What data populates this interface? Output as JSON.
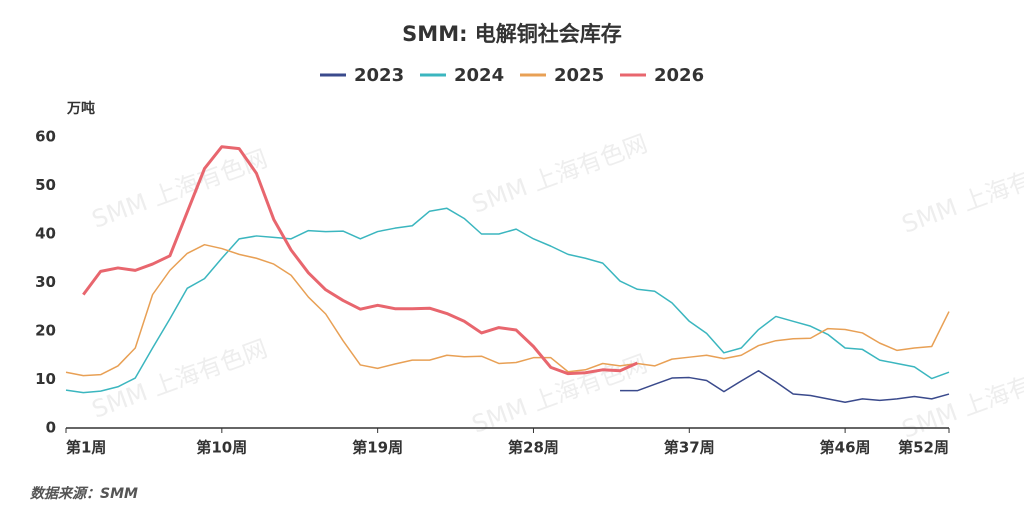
{
  "chart_data": {
    "type": "line",
    "title": "SMM: 电解铜社会库存",
    "y_label": "万吨",
    "source": "数据来源：SMM",
    "watermark": "SMM 上海有色网",
    "categories": [
      "第1周",
      null,
      null,
      null,
      null,
      null,
      null,
      null,
      null,
      "第10周",
      null,
      null,
      null,
      null,
      null,
      null,
      null,
      null,
      "第19周",
      null,
      null,
      null,
      null,
      null,
      null,
      null,
      null,
      "第28周",
      null,
      null,
      null,
      null,
      null,
      null,
      null,
      null,
      "第37周",
      null,
      null,
      null,
      null,
      null,
      null,
      null,
      null,
      "第46周",
      null,
      null,
      null,
      null,
      null,
      "第52周"
    ],
    "ylim": [
      0,
      60
    ],
    "yticks": [
      0,
      10,
      20,
      30,
      40,
      50,
      60
    ],
    "legend": "top",
    "series": [
      {
        "name": "2023",
        "color": "#3a4a8c",
        "width": 1.5,
        "values": [
          null,
          null,
          null,
          null,
          null,
          null,
          null,
          null,
          null,
          null,
          null,
          null,
          null,
          null,
          null,
          null,
          null,
          null,
          null,
          null,
          null,
          null,
          null,
          null,
          null,
          null,
          null,
          null,
          null,
          null,
          null,
          null,
          7.7,
          7.7,
          9,
          10.3,
          10.4,
          9.8,
          7.5,
          9.7,
          11.8,
          9.5,
          7,
          6.7,
          6,
          5.3,
          6,
          5.7,
          6,
          6.5,
          6,
          7
        ]
      },
      {
        "name": "2024",
        "color": "#3bb6bf",
        "width": 1.5,
        "values": [
          7.8,
          7.3,
          7.6,
          8.5,
          10.3,
          16.5,
          22.5,
          28.8,
          30.8,
          35,
          39,
          39.6,
          39.3,
          39,
          40.7,
          40.5,
          40.6,
          39,
          40.5,
          41.2,
          41.7,
          44.7,
          45.3,
          43.2,
          40,
          40,
          41,
          39,
          37.5,
          35.8,
          35,
          34,
          30.3,
          28.6,
          28.2,
          25.8,
          22,
          19.5,
          15.5,
          16.5,
          20.3,
          23,
          22,
          21,
          19.3,
          16.5,
          16.2,
          14,
          13.3,
          12.6,
          10.2,
          11.5
        ]
      },
      {
        "name": "2025",
        "color": "#e8a055",
        "width": 1.5,
        "values": [
          11.5,
          10.8,
          11,
          12.8,
          16.5,
          27.5,
          32.5,
          36,
          37.8,
          37,
          35.8,
          35,
          33.8,
          31.5,
          27,
          23.5,
          18,
          13,
          12.3,
          13.2,
          14,
          14,
          15,
          14.7,
          14.8,
          13.3,
          13.5,
          14.5,
          14.5,
          11.6,
          12,
          13.3,
          12.8,
          13.3,
          12.8,
          14.2,
          14.6,
          15,
          14.3,
          15,
          17,
          18,
          18.4,
          18.5,
          20.5,
          20.3,
          19.6,
          17.5,
          16,
          16.5,
          16.8,
          24
        ]
      },
      {
        "name": "2026",
        "color": "#e8666e",
        "width": 3,
        "values": [
          null,
          27.5,
          32.3,
          33,
          32.5,
          33.8,
          35.5,
          44.5,
          53.5,
          58,
          57.6,
          52.5,
          43,
          36.7,
          32,
          28.5,
          26.3,
          24.5,
          25.3,
          24.6,
          24.6,
          24.7,
          23.6,
          22,
          19.6,
          20.7,
          20.2,
          16.8,
          12.5,
          11.2,
          11.4,
          12,
          11.8,
          13.4,
          null,
          null,
          null,
          null,
          null,
          null,
          null,
          null,
          null,
          null,
          null,
          null,
          null,
          null,
          null,
          null,
          null,
          null
        ]
      }
    ]
  }
}
